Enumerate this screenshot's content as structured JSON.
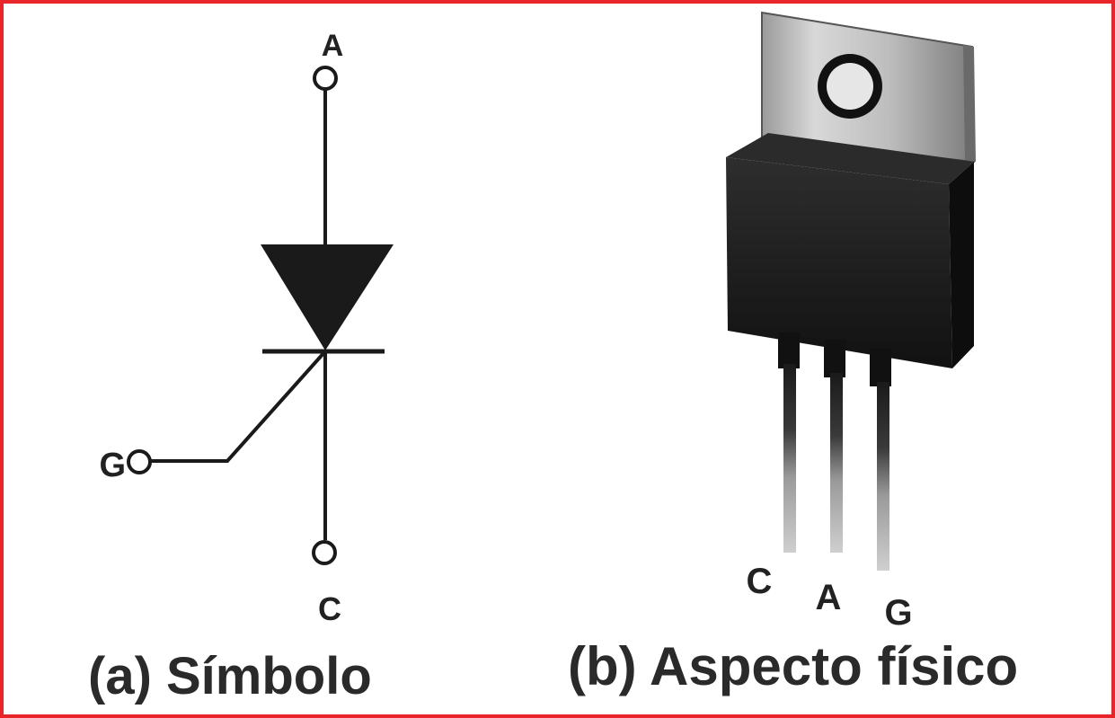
{
  "symbol": {
    "anode_label": "A",
    "cathode_label": "C",
    "gate_label": "G",
    "caption": "(a) Símbolo"
  },
  "physical": {
    "pin_left_label": "C",
    "pin_middle_label": "A",
    "pin_right_label": "G",
    "caption": "(b) Aspecto físico"
  },
  "colors": {
    "frame": "#e8262a",
    "ink": "#1a1a1a"
  }
}
